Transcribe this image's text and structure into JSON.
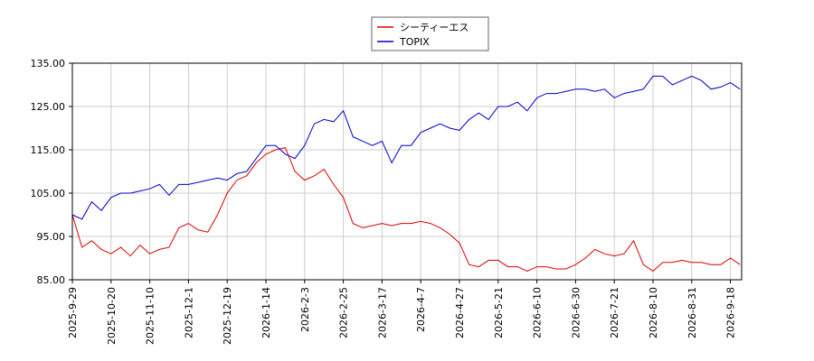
{
  "chart_data": {
    "type": "line",
    "categories": [
      "2025-9-29",
      null,
      null,
      null,
      "2025-10-20",
      null,
      null,
      null,
      "2025-11-10",
      null,
      null,
      null,
      "2025-12-1",
      null,
      null,
      null,
      "2025-12-19",
      null,
      null,
      null,
      "2026-1-14",
      null,
      null,
      null,
      "2026-2-3",
      null,
      null,
      null,
      "2026-2-25",
      null,
      null,
      null,
      "2026-3-17",
      null,
      null,
      null,
      "2026-4-7",
      null,
      null,
      null,
      "2026-4-27",
      null,
      null,
      null,
      "2026-5-21",
      null,
      null,
      null,
      "2026-6-10",
      null,
      null,
      null,
      "2026-6-30",
      null,
      null,
      null,
      "2026-7-21",
      null,
      null,
      null,
      "2026-8-10",
      null,
      null,
      null,
      "2026-8-31",
      null,
      null,
      null,
      "2026-9-18",
      null
    ],
    "series": [
      {
        "name": "シーティーエス",
        "color": "#dd0000",
        "values": [
          100,
          92.5,
          94,
          92,
          91,
          92.5,
          90.5,
          93,
          91,
          92,
          92.5,
          97,
          98,
          96.5,
          96,
          100,
          105,
          108,
          109,
          112,
          114,
          115,
          115.5,
          110,
          108,
          109,
          110.5,
          107,
          104,
          98,
          97,
          97.5,
          98,
          97.5,
          98,
          98,
          98.5,
          98,
          97,
          95.5,
          93.5,
          88.5,
          88,
          89.5,
          89.5,
          88,
          88,
          87,
          88,
          88,
          87.5,
          87.5,
          88.5,
          90,
          92,
          91,
          90.5,
          91,
          94,
          88.5,
          87,
          89,
          89,
          89.5,
          89,
          89,
          88.5,
          88.5,
          90,
          88.5
        ]
      },
      {
        "name": "TOPIX",
        "color": "#0000cc",
        "values": [
          100,
          99,
          103,
          101,
          104,
          105,
          105,
          105.5,
          106,
          107,
          104.5,
          107,
          107,
          107.5,
          108,
          108.5,
          108,
          109.5,
          110,
          113,
          116,
          116,
          114,
          113,
          116,
          121,
          122,
          121.5,
          124,
          118,
          117,
          116,
          117,
          112,
          116,
          116,
          119,
          120,
          121,
          120,
          119.5,
          122,
          123.5,
          122,
          125,
          125,
          126,
          124,
          127,
          128,
          128,
          128.5,
          129,
          129,
          128.5,
          129,
          127,
          128,
          128.5,
          129,
          132,
          132,
          130,
          131,
          132,
          131,
          129,
          129.5,
          130.5,
          129
        ]
      }
    ],
    "ylim": [
      85,
      135
    ],
    "yticks": [
      {
        "value": 85,
        "label": "85.00"
      },
      {
        "value": 95,
        "label": "95.00"
      },
      {
        "value": 105,
        "label": "105.00"
      },
      {
        "value": 115,
        "label": "115.00"
      },
      {
        "value": 125,
        "label": "125.00"
      },
      {
        "value": 135,
        "label": "135.00"
      }
    ],
    "grid": true,
    "legend": "top"
  }
}
